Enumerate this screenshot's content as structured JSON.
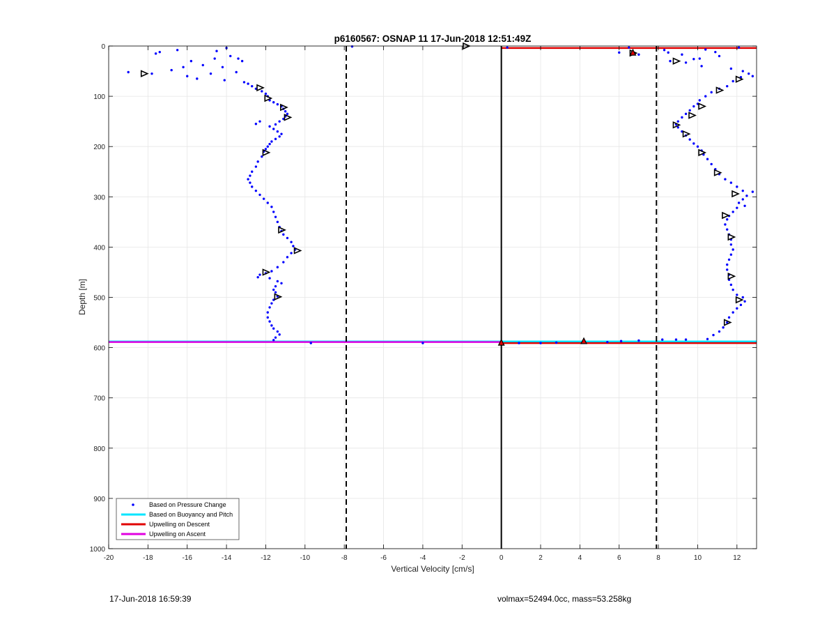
{
  "footer": {
    "timestamp": "17-Jun-2018 16:59:39",
    "summary": "volmax=52494.0cc, mass=53.258kg"
  },
  "chart_data": {
    "type": "scatter",
    "title": "p6160567: OSNAP 11 17-Jun-2018 12:51:49Z",
    "xlabel": "Vertical Velocity [cm/s]",
    "ylabel": "Depth [m]",
    "xlim": [
      -20,
      13
    ],
    "ylim": [
      0,
      1000
    ],
    "y_reversed": true,
    "grid": true,
    "legend_position": "bottom-left",
    "xticks": [
      -20,
      -18,
      -16,
      -14,
      -12,
      -10,
      -8,
      -6,
      -4,
      -2,
      0,
      2,
      4,
      6,
      8,
      10,
      12
    ],
    "yticks": [
      0,
      100,
      200,
      300,
      400,
      500,
      600,
      700,
      800,
      900,
      1000
    ],
    "colors": {
      "pressure": "#0000ff",
      "buoyancy": "#00e5ff",
      "descent": "#e00000",
      "ascent": "#e000e0"
    },
    "legend": [
      {
        "key": "pressure",
        "label": "Based on Pressure Change",
        "marker": "dot"
      },
      {
        "key": "buoyancy",
        "label": "Based on Buoyancy and Pitch",
        "marker": "line"
      },
      {
        "key": "descent",
        "label": "Upwelling on Descent",
        "marker": "line"
      },
      {
        "key": "ascent",
        "label": "Upwelling on Ascent",
        "marker": "line"
      }
    ],
    "reference_lines": {
      "solid_x": [
        0
      ],
      "dashed_x": [
        -7.9,
        7.9
      ]
    },
    "descent_upwelling_lines": [
      {
        "depth": 4,
        "x_from": 0,
        "x_to": 13
      },
      {
        "depth": 591,
        "x_from": 0,
        "x_to": 13
      }
    ],
    "ascent_upwelling_lines": [
      {
        "depth": 589,
        "x_from": -20,
        "x_to": 0
      }
    ],
    "buoyancy_lines": [
      {
        "depth": 588,
        "x_from": -20,
        "x_to": 13
      }
    ],
    "series": [
      {
        "key": "pressure",
        "name": "Based on Pressure Change",
        "points": [
          [
            -19.0,
            52
          ],
          [
            -17.6,
            15
          ],
          [
            -17.4,
            12
          ],
          [
            -17.8,
            55
          ],
          [
            -16.5,
            8
          ],
          [
            -16.8,
            48
          ],
          [
            -16.2,
            42
          ],
          [
            -15.8,
            30
          ],
          [
            -16.0,
            60
          ],
          [
            -15.5,
            65
          ],
          [
            -15.2,
            38
          ],
          [
            -14.8,
            55
          ],
          [
            -14.6,
            25
          ],
          [
            -14.5,
            10
          ],
          [
            -14.2,
            42
          ],
          [
            -14.0,
            4
          ],
          [
            -13.8,
            20
          ],
          [
            -13.4,
            25
          ],
          [
            -13.5,
            52
          ],
          [
            -13.2,
            30
          ],
          [
            -14.1,
            68
          ],
          [
            -13.1,
            72
          ],
          [
            -12.9,
            75
          ],
          [
            -12.7,
            80
          ],
          [
            -12.5,
            85
          ],
          [
            -12.2,
            90
          ],
          [
            -12.0,
            95
          ],
          [
            -11.9,
            100
          ],
          [
            -11.8,
            108
          ],
          [
            -11.6,
            112
          ],
          [
            -11.4,
            116
          ],
          [
            -11.2,
            120
          ],
          [
            -11.1,
            125
          ],
          [
            -11.0,
            130
          ],
          [
            -10.9,
            135
          ],
          [
            -11.0,
            140
          ],
          [
            -11.1,
            145
          ],
          [
            -11.3,
            150
          ],
          [
            -12.3,
            150
          ],
          [
            -12.5,
            155
          ],
          [
            -11.5,
            156
          ],
          [
            -11.8,
            160
          ],
          [
            -11.6,
            165
          ],
          [
            -11.4,
            170
          ],
          [
            -11.2,
            175
          ],
          [
            -11.3,
            180
          ],
          [
            -11.5,
            185
          ],
          [
            -11.7,
            190
          ],
          [
            -11.8,
            195
          ],
          [
            -11.9,
            200
          ],
          [
            -12.0,
            205
          ],
          [
            -12.1,
            210
          ],
          [
            -12.2,
            220
          ],
          [
            -12.4,
            230
          ],
          [
            -12.5,
            240
          ],
          [
            -12.7,
            250
          ],
          [
            -12.8,
            258
          ],
          [
            -12.9,
            265
          ],
          [
            -12.8,
            272
          ],
          [
            -12.7,
            280
          ],
          [
            -12.5,
            288
          ],
          [
            -12.3,
            296
          ],
          [
            -12.1,
            304
          ],
          [
            -11.9,
            312
          ],
          [
            -11.7,
            320
          ],
          [
            -11.6,
            330
          ],
          [
            -11.5,
            340
          ],
          [
            -11.4,
            350
          ],
          [
            -11.3,
            360
          ],
          [
            -11.2,
            368
          ],
          [
            -11.1,
            375
          ],
          [
            -10.9,
            382
          ],
          [
            -10.7,
            390
          ],
          [
            -10.6,
            398
          ],
          [
            -10.5,
            405
          ],
          [
            -10.7,
            412
          ],
          [
            -10.9,
            420
          ],
          [
            -11.1,
            430
          ],
          [
            -11.4,
            440
          ],
          [
            -11.7,
            448
          ],
          [
            -12.0,
            452
          ],
          [
            -12.3,
            455
          ],
          [
            -12.4,
            460
          ],
          [
            -11.8,
            462
          ],
          [
            -11.4,
            468
          ],
          [
            -11.2,
            472
          ],
          [
            -11.5,
            478
          ],
          [
            -11.6,
            485
          ],
          [
            -11.5,
            490
          ],
          [
            -11.4,
            498
          ],
          [
            -11.6,
            505
          ],
          [
            -11.7,
            512
          ],
          [
            -11.8,
            520
          ],
          [
            -11.9,
            530
          ],
          [
            -11.9,
            540
          ],
          [
            -11.8,
            548
          ],
          [
            -11.7,
            556
          ],
          [
            -11.6,
            562
          ],
          [
            -11.4,
            568
          ],
          [
            -11.3,
            574
          ],
          [
            -11.5,
            580
          ],
          [
            -11.6,
            585
          ],
          [
            -9.7,
            591
          ],
          [
            -4.0,
            591
          ],
          [
            -7.6,
            1
          ],
          [
            0.3,
            3
          ],
          [
            0.9,
            591
          ],
          [
            2.0,
            591
          ],
          [
            2.8,
            590
          ],
          [
            5.4,
            589
          ],
          [
            6.1,
            587
          ],
          [
            7.0,
            586
          ],
          [
            8.2,
            584
          ],
          [
            8.9,
            584
          ],
          [
            9.4,
            584
          ],
          [
            10.5,
            583
          ],
          [
            6.5,
            3
          ],
          [
            6.0,
            13
          ],
          [
            7.0,
            17
          ],
          [
            8.3,
            8
          ],
          [
            8.5,
            13
          ],
          [
            9.2,
            17
          ],
          [
            10.1,
            25
          ],
          [
            10.4,
            7
          ],
          [
            10.9,
            12
          ],
          [
            11.1,
            20
          ],
          [
            12.1,
            3
          ],
          [
            8.6,
            30
          ],
          [
            9.4,
            33
          ],
          [
            9.8,
            26
          ],
          [
            10.2,
            40
          ],
          [
            11.7,
            45
          ],
          [
            12.3,
            50
          ],
          [
            12.6,
            55
          ],
          [
            12.8,
            60
          ],
          [
            12.2,
            62
          ],
          [
            11.8,
            70
          ],
          [
            11.5,
            80
          ],
          [
            11.1,
            85
          ],
          [
            10.7,
            92
          ],
          [
            10.4,
            100
          ],
          [
            10.1,
            108
          ],
          [
            10.0,
            115
          ],
          [
            9.8,
            120
          ],
          [
            9.6,
            128
          ],
          [
            9.4,
            135
          ],
          [
            9.2,
            142
          ],
          [
            9.0,
            150
          ],
          [
            8.9,
            156
          ],
          [
            9.0,
            162
          ],
          [
            9.2,
            170
          ],
          [
            9.4,
            178
          ],
          [
            9.6,
            186
          ],
          [
            9.8,
            194
          ],
          [
            10.0,
            200
          ],
          [
            10.2,
            208
          ],
          [
            10.3,
            216
          ],
          [
            10.5,
            225
          ],
          [
            10.7,
            235
          ],
          [
            10.9,
            245
          ],
          [
            11.1,
            255
          ],
          [
            11.4,
            265
          ],
          [
            11.7,
            272
          ],
          [
            12.0,
            280
          ],
          [
            12.3,
            288
          ],
          [
            12.8,
            290
          ],
          [
            12.5,
            298
          ],
          [
            12.3,
            305
          ],
          [
            12.1,
            312
          ],
          [
            12.4,
            318
          ],
          [
            12.0,
            322
          ],
          [
            11.8,
            330
          ],
          [
            11.6,
            338
          ],
          [
            11.5,
            345
          ],
          [
            11.4,
            355
          ],
          [
            11.5,
            365
          ],
          [
            11.6,
            375
          ],
          [
            11.7,
            385
          ],
          [
            11.7,
            395
          ],
          [
            11.8,
            405
          ],
          [
            11.7,
            415
          ],
          [
            11.6,
            425
          ],
          [
            11.5,
            435
          ],
          [
            11.5,
            445
          ],
          [
            11.6,
            455
          ],
          [
            11.6,
            465
          ],
          [
            11.7,
            475
          ],
          [
            11.8,
            485
          ],
          [
            12.0,
            495
          ],
          [
            12.3,
            500
          ],
          [
            12.4,
            508
          ],
          [
            12.2,
            515
          ],
          [
            12.0,
            522
          ],
          [
            11.8,
            530
          ],
          [
            11.6,
            540
          ],
          [
            11.5,
            550
          ],
          [
            11.3,
            560
          ],
          [
            11.1,
            568
          ],
          [
            10.8,
            575
          ]
        ]
      },
      {
        "key": "descent_markers",
        "name": "descent markers",
        "points": [
          [
            6.7,
            14
          ],
          [
            4.2,
            588
          ],
          [
            0.0,
            591
          ]
        ]
      }
    ],
    "triangle_markers": [
      [
        -18.2,
        55
      ],
      [
        -12.3,
        83
      ],
      [
        -11.9,
        104
      ],
      [
        -11.1,
        122
      ],
      [
        -10.9,
        142
      ],
      [
        -12.0,
        212
      ],
      [
        -11.2,
        366
      ],
      [
        -10.4,
        407
      ],
      [
        -12.0,
        450
      ],
      [
        -11.4,
        499
      ],
      [
        -1.8,
        0
      ],
      [
        6.7,
        14
      ],
      [
        8.9,
        30
      ],
      [
        12.1,
        66
      ],
      [
        11.1,
        88
      ],
      [
        10.2,
        120
      ],
      [
        9.7,
        138
      ],
      [
        8.9,
        157
      ],
      [
        9.4,
        175
      ],
      [
        10.2,
        212
      ],
      [
        11.0,
        252
      ],
      [
        11.9,
        294
      ],
      [
        11.4,
        337
      ],
      [
        11.7,
        380
      ],
      [
        11.7,
        458
      ],
      [
        12.1,
        505
      ],
      [
        11.5,
        550
      ]
    ]
  }
}
